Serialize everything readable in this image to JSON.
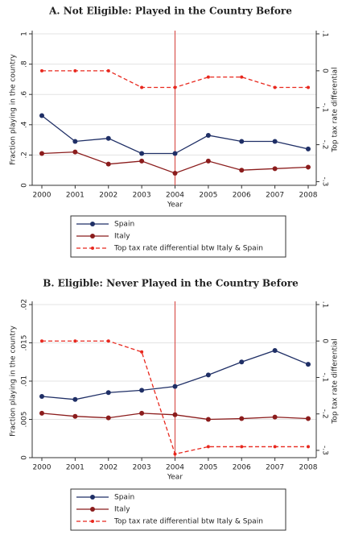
{
  "chart_data": [
    {
      "type": "line",
      "title": "A. Not Eligible: Played in the Country Before",
      "xlabel": "Year",
      "ylabel": "Fraction playing in the country",
      "y2label": "Top tax rate differential",
      "x": [
        2000,
        2001,
        2002,
        2003,
        2004,
        2005,
        2006,
        2007,
        2008
      ],
      "xlim": [
        2000,
        2008
      ],
      "xticks": [
        2000,
        2001,
        2002,
        2003,
        2004,
        2005,
        2006,
        2007,
        2008
      ],
      "ylim": [
        0,
        1
      ],
      "yticks": [
        0,
        {
          "value": 0.2,
          "label": ".2"
        },
        {
          "value": 0.4,
          "label": ".4"
        },
        {
          "value": 0.6,
          "label": ".6"
        },
        {
          "value": 0.8,
          "label": ".8"
        },
        1
      ],
      "y2lim": [
        -0.31,
        0.1
      ],
      "y2ticks": [
        {
          "value": -0.3,
          "label": "-.3"
        },
        {
          "value": -0.2,
          "label": "-.2"
        },
        {
          "value": -0.1,
          "label": "-.1"
        },
        0,
        {
          "value": 0.1,
          "label": ".1"
        }
      ],
      "grid": true,
      "vline": 2004,
      "vline_color": "#d9534f",
      "series": [
        {
          "name": "Spain",
          "color": "#1f2f66",
          "values": [
            0.46,
            0.29,
            0.31,
            0.21,
            0.21,
            0.33,
            0.29,
            0.29,
            0.24
          ]
        },
        {
          "name": "Italy",
          "color": "#8b1c1c",
          "values": [
            0.21,
            0.22,
            0.14,
            0.16,
            0.08,
            0.16,
            0.1,
            0.11,
            0.12
          ]
        },
        {
          "name": "Top tax rate differential btw Italy & Spain",
          "color": "#e8281e",
          "axis": "y2",
          "linestyle": "dashed",
          "values": [
            0,
            0,
            0,
            -0.045,
            -0.045,
            -0.017,
            -0.017,
            -0.045,
            -0.045
          ]
        }
      ]
    },
    {
      "type": "line",
      "title": "B. Eligible: Never Played in the Country Before",
      "xlabel": "Year",
      "ylabel": "Fraction playing in the country",
      "y2label": "Top tax rate differential",
      "x": [
        2000,
        2001,
        2002,
        2003,
        2004,
        2005,
        2006,
        2007,
        2008
      ],
      "xlim": [
        2000,
        2008
      ],
      "xticks": [
        2000,
        2001,
        2002,
        2003,
        2004,
        2005,
        2006,
        2007,
        2008
      ],
      "ylim": [
        0,
        0.02
      ],
      "yticks": [
        0,
        {
          "value": 0.005,
          "label": ".005"
        },
        {
          "value": 0.01,
          "label": ".01"
        },
        {
          "value": 0.015,
          "label": ".015"
        },
        {
          "value": 0.02,
          "label": ".02"
        }
      ],
      "y2lim": [
        -0.32,
        0.1
      ],
      "y2ticks": [
        {
          "value": -0.3,
          "label": "-.3"
        },
        {
          "value": -0.2,
          "label": "-.2"
        },
        {
          "value": -0.1,
          "label": "-.1"
        },
        0,
        {
          "value": 0.1,
          "label": ".1"
        }
      ],
      "grid": true,
      "vline": 2004,
      "vline_color": "#d9534f",
      "series": [
        {
          "name": "Spain",
          "color": "#1f2f66",
          "values": [
            0.008,
            0.0076,
            0.0085,
            0.0088,
            0.0093,
            0.0108,
            0.0125,
            0.014,
            0.0122
          ]
        },
        {
          "name": "Italy",
          "color": "#8b1c1c",
          "values": [
            0.0058,
            0.0054,
            0.0052,
            0.0058,
            0.0056,
            0.005,
            0.0051,
            0.0053,
            0.0051
          ]
        },
        {
          "name": "Top tax rate differential btw Italy & Spain",
          "color": "#e8281e",
          "axis": "y2",
          "linestyle": "dashed",
          "values": [
            0,
            0,
            0,
            -0.03,
            -0.31,
            -0.29,
            -0.29,
            -0.29,
            -0.29
          ]
        }
      ]
    }
  ]
}
